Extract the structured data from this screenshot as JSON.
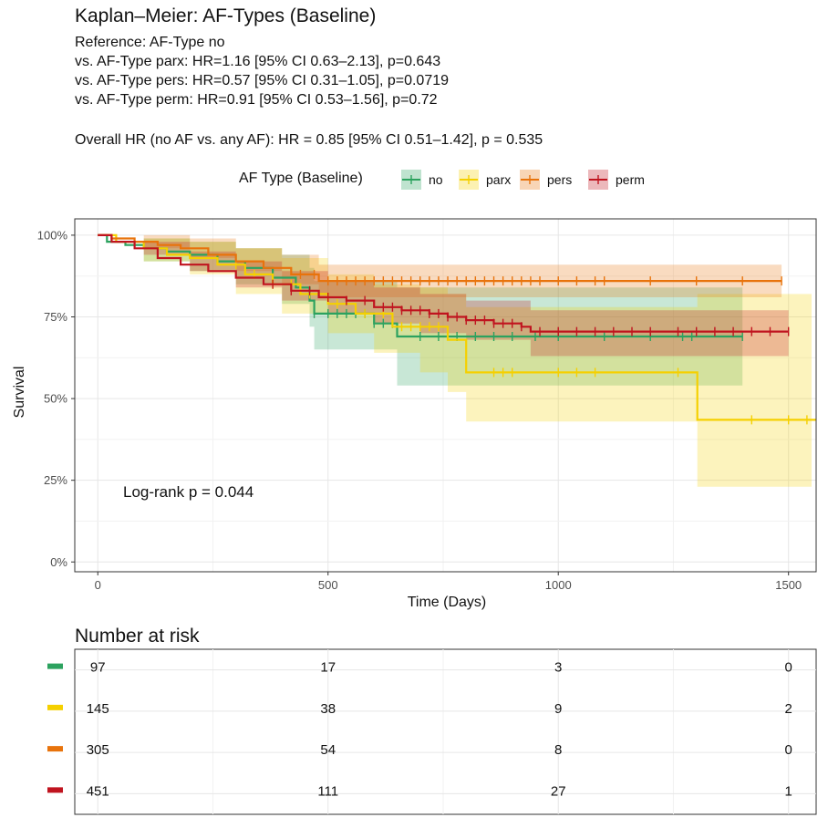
{
  "title": "Kaplan–Meier: AF-Types (Baseline)",
  "subtitle_lines": [
    "Reference: AF-Type no",
    "vs. AF-Type parx: HR=1.16 [95% CI 0.63–2.13], p=0.643",
    "vs. AF-Type pers: HR=0.57 [95% CI 0.31–1.05], p=0.0719",
    "vs. AF-Type perm: HR=0.91 [95% CI 0.53–1.56], p=0.72"
  ],
  "overall_hr": "Overall HR (no AF vs. any AF): HR = 0.85 [95% CI 0.51–1.42], p = 0.535",
  "colors": {
    "no": "#2ca25f",
    "parx": "#f5d000",
    "pers": "#e8730c",
    "perm": "#c0141f",
    "grid": "#e6e6e6",
    "frame": "#333333"
  },
  "chart_data": {
    "type": "line",
    "subtype": "kaplan-meier",
    "title": "Kaplan–Meier: AF-Types (Baseline)",
    "xlabel": "Time (Days)",
    "ylabel": "Survival",
    "xlim": [
      -50,
      1560
    ],
    "ylim": [
      -0.03,
      1.05
    ],
    "x_ticks": [
      0,
      500,
      1000,
      1500
    ],
    "y_ticks": [
      0,
      0.25,
      0.5,
      0.75,
      1.0
    ],
    "y_tick_labels": [
      "0%",
      "25%",
      "50%",
      "75%",
      "100%"
    ],
    "legend": {
      "title": "AF Type (Baseline)",
      "position": "top",
      "entries": [
        "no",
        "parx",
        "pers",
        "perm"
      ]
    },
    "annotation": "Log-rank p = 0.044",
    "series": [
      {
        "name": "no",
        "color_key": "no",
        "steps": [
          [
            0,
            1.0
          ],
          [
            20,
            0.98
          ],
          [
            60,
            0.97
          ],
          [
            100,
            0.96
          ],
          [
            150,
            0.95
          ],
          [
            200,
            0.94
          ],
          [
            260,
            0.92
          ],
          [
            320,
            0.9
          ],
          [
            380,
            0.87
          ],
          [
            430,
            0.84
          ],
          [
            460,
            0.8
          ],
          [
            470,
            0.76
          ],
          [
            550,
            0.76
          ],
          [
            600,
            0.73
          ],
          [
            650,
            0.69
          ],
          [
            820,
            0.69
          ],
          [
            930,
            0.69
          ],
          [
            1400,
            0.69
          ]
        ],
        "lower": [
          [
            0,
            1.0
          ],
          [
            100,
            0.92
          ],
          [
            200,
            0.89
          ],
          [
            300,
            0.85
          ],
          [
            400,
            0.79
          ],
          [
            460,
            0.72
          ],
          [
            470,
            0.65
          ],
          [
            650,
            0.54
          ],
          [
            1400,
            0.54
          ]
        ],
        "upper": [
          [
            0,
            1.0
          ],
          [
            100,
            0.99
          ],
          [
            200,
            0.98
          ],
          [
            300,
            0.96
          ],
          [
            400,
            0.94
          ],
          [
            460,
            0.9
          ],
          [
            470,
            0.86
          ],
          [
            650,
            0.84
          ],
          [
            1400,
            0.84
          ]
        ],
        "censor": [
          470,
          500,
          520,
          540,
          560,
          580,
          600,
          620,
          640,
          700,
          740,
          780,
          820,
          860,
          900,
          950,
          1000,
          1100,
          1200,
          1270,
          1290,
          1400
        ]
      },
      {
        "name": "parx",
        "color_key": "parx",
        "steps": [
          [
            0,
            1.0
          ],
          [
            40,
            0.98
          ],
          [
            100,
            0.96
          ],
          [
            150,
            0.94
          ],
          [
            200,
            0.93
          ],
          [
            260,
            0.91
          ],
          [
            320,
            0.88
          ],
          [
            380,
            0.85
          ],
          [
            440,
            0.82
          ],
          [
            500,
            0.79
          ],
          [
            560,
            0.76
          ],
          [
            640,
            0.72
          ],
          [
            700,
            0.72
          ],
          [
            760,
            0.68
          ],
          [
            800,
            0.58
          ],
          [
            1300,
            0.58
          ],
          [
            1302,
            0.435
          ],
          [
            1560,
            0.435
          ]
        ],
        "lower": [
          [
            0,
            1.0
          ],
          [
            100,
            0.92
          ],
          [
            200,
            0.88
          ],
          [
            300,
            0.82
          ],
          [
            400,
            0.76
          ],
          [
            500,
            0.7
          ],
          [
            600,
            0.64
          ],
          [
            700,
            0.58
          ],
          [
            760,
            0.52
          ],
          [
            800,
            0.43
          ],
          [
            1300,
            0.43
          ],
          [
            1302,
            0.23
          ],
          [
            1550,
            0.23
          ]
        ],
        "upper": [
          [
            0,
            1.0
          ],
          [
            100,
            0.99
          ],
          [
            200,
            0.98
          ],
          [
            300,
            0.96
          ],
          [
            400,
            0.93
          ],
          [
            500,
            0.88
          ],
          [
            600,
            0.85
          ],
          [
            700,
            0.84
          ],
          [
            760,
            0.82
          ],
          [
            800,
            0.78
          ],
          [
            1300,
            0.78
          ],
          [
            1302,
            0.82
          ],
          [
            1550,
            0.82
          ]
        ],
        "censor": [
          300,
          340,
          380,
          420,
          460,
          520,
          580,
          620,
          660,
          680,
          700,
          720,
          740,
          860,
          880,
          900,
          1000,
          1040,
          1080,
          1260,
          1420,
          1500,
          1540
        ]
      },
      {
        "name": "pers",
        "color_key": "pers",
        "steps": [
          [
            0,
            1.0
          ],
          [
            30,
            0.99
          ],
          [
            80,
            0.98
          ],
          [
            130,
            0.97
          ],
          [
            180,
            0.96
          ],
          [
            240,
            0.94
          ],
          [
            300,
            0.92
          ],
          [
            360,
            0.9
          ],
          [
            420,
            0.88
          ],
          [
            480,
            0.86
          ],
          [
            500,
            0.86
          ],
          [
            1485,
            0.86
          ]
        ],
        "lower": [
          [
            0,
            1.0
          ],
          [
            100,
            0.96
          ],
          [
            200,
            0.93
          ],
          [
            300,
            0.89
          ],
          [
            400,
            0.85
          ],
          [
            480,
            0.81
          ],
          [
            1485,
            0.81
          ]
        ],
        "upper": [
          [
            0,
            1.0
          ],
          [
            100,
            1.0
          ],
          [
            200,
            0.99
          ],
          [
            300,
            0.96
          ],
          [
            400,
            0.94
          ],
          [
            480,
            0.91
          ],
          [
            1485,
            0.91
          ]
        ],
        "censor": [
          440,
          470,
          500,
          520,
          540,
          560,
          580,
          600,
          620,
          640,
          660,
          680,
          700,
          720,
          740,
          760,
          780,
          800,
          820,
          840,
          860,
          880,
          900,
          920,
          940,
          960,
          1000,
          1040,
          1080,
          1100,
          1200,
          1300,
          1400,
          1485
        ]
      },
      {
        "name": "perm",
        "color_key": "perm",
        "steps": [
          [
            0,
            1.0
          ],
          [
            30,
            0.98
          ],
          [
            80,
            0.96
          ],
          [
            130,
            0.93
          ],
          [
            180,
            0.91
          ],
          [
            240,
            0.89
          ],
          [
            300,
            0.87
          ],
          [
            360,
            0.85
          ],
          [
            420,
            0.83
          ],
          [
            480,
            0.81
          ],
          [
            540,
            0.8
          ],
          [
            600,
            0.78
          ],
          [
            660,
            0.77
          ],
          [
            720,
            0.76
          ],
          [
            760,
            0.75
          ],
          [
            800,
            0.74
          ],
          [
            860,
            0.73
          ],
          [
            920,
            0.72
          ],
          [
            940,
            0.705
          ],
          [
            1500,
            0.705
          ]
        ],
        "lower": [
          [
            0,
            1.0
          ],
          [
            100,
            0.94
          ],
          [
            200,
            0.89
          ],
          [
            300,
            0.84
          ],
          [
            400,
            0.8
          ],
          [
            500,
            0.76
          ],
          [
            600,
            0.73
          ],
          [
            700,
            0.7
          ],
          [
            800,
            0.68
          ],
          [
            940,
            0.63
          ],
          [
            1500,
            0.63
          ]
        ],
        "upper": [
          [
            0,
            1.0
          ],
          [
            100,
            0.98
          ],
          [
            200,
            0.95
          ],
          [
            300,
            0.92
          ],
          [
            400,
            0.89
          ],
          [
            500,
            0.86
          ],
          [
            600,
            0.84
          ],
          [
            700,
            0.82
          ],
          [
            800,
            0.8
          ],
          [
            940,
            0.77
          ],
          [
            1500,
            0.77
          ]
        ],
        "censor": [
          380,
          420,
          460,
          500,
          540,
          580,
          620,
          640,
          660,
          680,
          700,
          720,
          740,
          760,
          780,
          800,
          820,
          840,
          860,
          880,
          900,
          920,
          960,
          1000,
          1040,
          1080,
          1120,
          1160,
          1200,
          1260,
          1300,
          1340,
          1380,
          1420,
          1460,
          1500
        ]
      }
    ],
    "risk_table": {
      "title": "Number at risk",
      "times": [
        0,
        500,
        1000,
        1500
      ],
      "rows": [
        {
          "group": "no",
          "values": [
            "97",
            "17",
            "3",
            "0"
          ]
        },
        {
          "group": "parx",
          "values": [
            "145",
            "38",
            "9",
            "2"
          ]
        },
        {
          "group": "pers",
          "values": [
            "305",
            "54",
            "8",
            "0"
          ]
        },
        {
          "group": "perm",
          "values": [
            "451",
            "111",
            "27",
            "1"
          ]
        }
      ]
    }
  }
}
